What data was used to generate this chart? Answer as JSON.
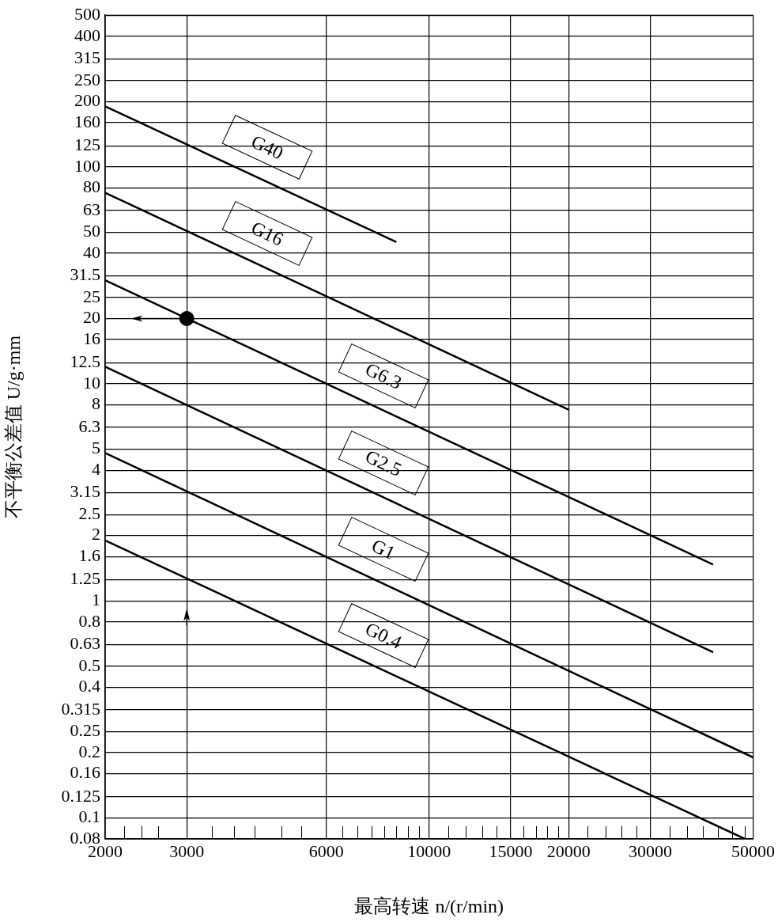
{
  "chart_data": {
    "type": "line",
    "xlabel": "最高转速 n/(r/min)",
    "ylabel": "不平衡公差值 U/g·mm",
    "log": "xy",
    "xlim": [
      2000,
      50000
    ],
    "ylim": [
      0.08,
      500
    ],
    "xticks": [
      2000,
      {
        "value": 2200,
        "label": null
      },
      {
        "value": 2400,
        "label": null
      },
      {
        "value": 2600,
        "label": null
      },
      3000,
      {
        "value": 3400,
        "label": null
      },
      {
        "value": 3800,
        "label": null
      },
      {
        "value": 4200,
        "label": null
      },
      {
        "value": 4800,
        "label": null
      },
      {
        "value": 5300,
        "label": null
      },
      6000,
      {
        "value": 6500,
        "label": null
      },
      {
        "value": 7000,
        "label": null
      },
      {
        "value": 7500,
        "label": null
      },
      {
        "value": 8000,
        "label": null
      },
      {
        "value": 8500,
        "label": null
      },
      {
        "value": 9000,
        "label": null
      },
      {
        "value": 9500,
        "label": null
      },
      10000,
      {
        "value": 11000,
        "label": null
      },
      {
        "value": 12000,
        "label": null
      },
      {
        "value": 13000,
        "label": null
      },
      {
        "value": 14000,
        "label": null
      },
      15000,
      {
        "value": 16000,
        "label": null
      },
      {
        "value": 17000,
        "label": null
      },
      {
        "value": 18000,
        "label": null
      },
      {
        "value": 19000,
        "label": null
      },
      20000,
      {
        "value": 22000,
        "label": null
      },
      {
        "value": 24000,
        "label": null
      },
      {
        "value": 26000,
        "label": null
      },
      {
        "value": 28000,
        "label": null
      },
      30000,
      {
        "value": 33000,
        "label": null
      },
      {
        "value": 36000,
        "label": null
      },
      {
        "value": 39000,
        "label": null
      },
      {
        "value": 42000,
        "label": null
      },
      {
        "value": 45000,
        "label": null
      },
      {
        "value": 48000,
        "label": null
      },
      50000
    ],
    "yticks": [
      0.08,
      0.1,
      0.125,
      0.16,
      0.2,
      0.25,
      0.315,
      0.4,
      0.5,
      0.63,
      0.8,
      1,
      1.25,
      1.6,
      2,
      2.5,
      3.15,
      4,
      5,
      6.3,
      8,
      10,
      12.5,
      16,
      20,
      25,
      31.5,
      40,
      50,
      63,
      80,
      100,
      125,
      160,
      200,
      250,
      315,
      400,
      500
    ],
    "grid": true,
    "series": [
      {
        "name": "G40",
        "type": "line",
        "color": "#000000",
        "x": [
          2000,
          8500
        ],
        "values": [
          190,
          45
        ]
      },
      {
        "name": "G16",
        "type": "line",
        "color": "#000000",
        "x": [
          2000,
          20000
        ],
        "values": [
          76,
          7.6
        ]
      },
      {
        "name": "G6.3",
        "type": "line",
        "color": "#000000",
        "x": [
          2000,
          41000
        ],
        "values": [
          30,
          1.47
        ]
      },
      {
        "name": "G2.5",
        "type": "line",
        "color": "#000000",
        "x": [
          2000,
          41000
        ],
        "values": [
          12,
          0.58
        ]
      },
      {
        "name": "G1",
        "type": "line",
        "color": "#000000",
        "x": [
          2000,
          50000
        ],
        "values": [
          4.8,
          0.19
        ]
      },
      {
        "name": "G0.4",
        "type": "line",
        "color": "#000000",
        "x": [
          2000,
          48000
        ],
        "values": [
          1.9,
          0.08
        ]
      },
      {
        "type": "scatter",
        "color": "#000000",
        "marker": "circle",
        "x": [
          3000
        ],
        "values": [
          20
        ]
      }
    ]
  }
}
